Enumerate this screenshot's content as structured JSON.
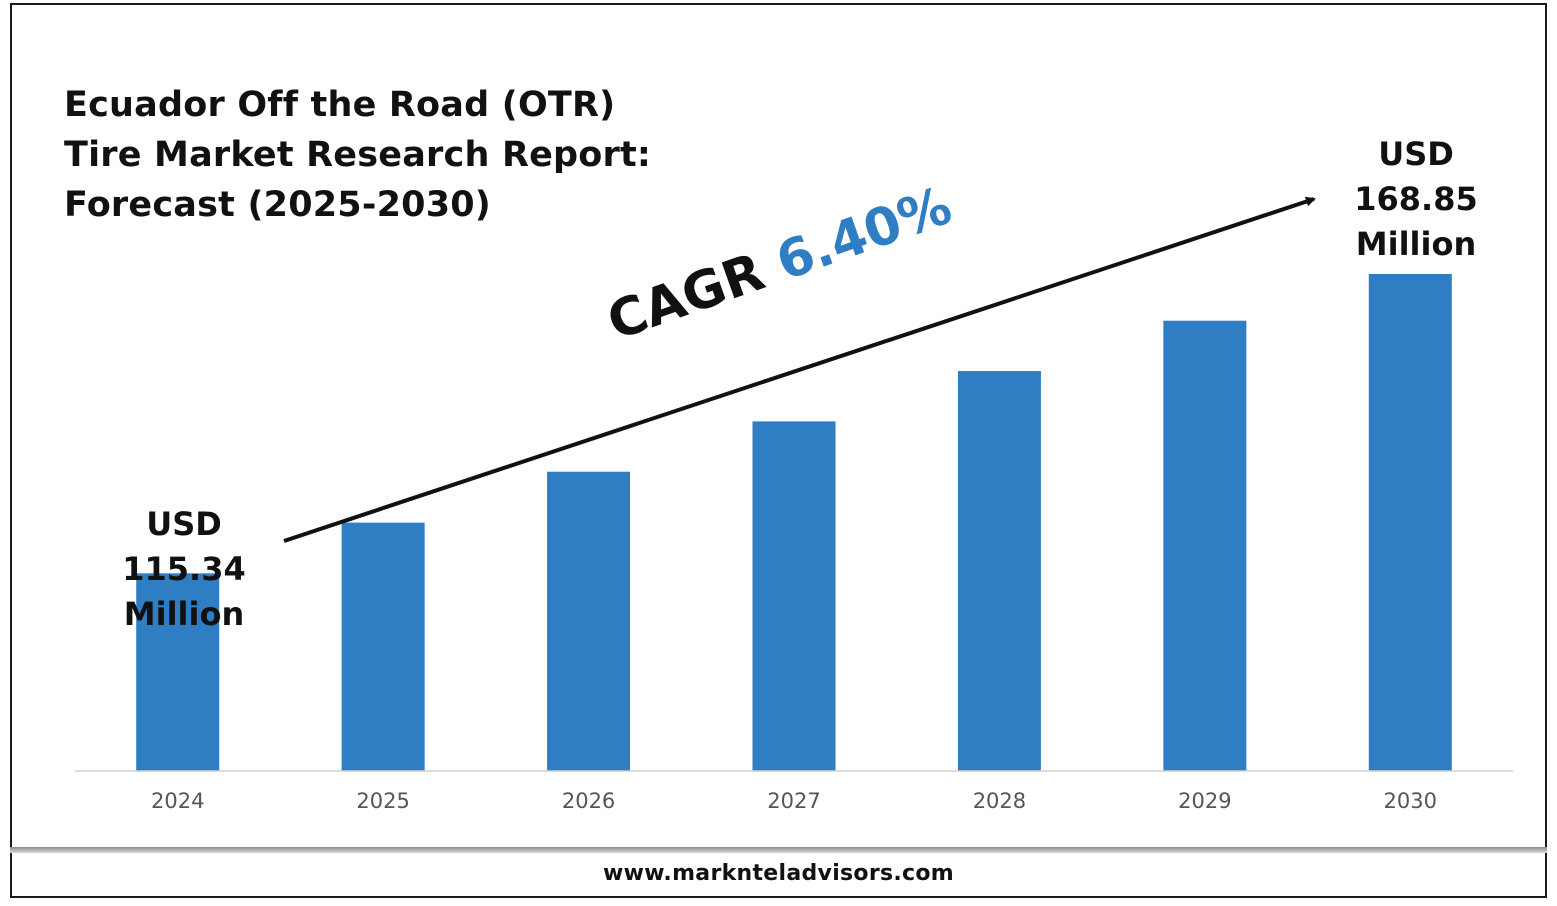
{
  "chart_data": {
    "type": "bar",
    "title": "Ecuador Off the Road (OTR)\nTire Market Research Report:\nForecast (2025-2030)",
    "categories": [
      "2024",
      "2025",
      "2026",
      "2027",
      "2028",
      "2029",
      "2030"
    ],
    "values": [
      115.34,
      124.4,
      133.5,
      142.5,
      151.5,
      160.5,
      168.85
    ],
    "unit": "USD Million",
    "bar_color": "#2f7dc2",
    "ylim": [
      80,
      175
    ],
    "grid": false,
    "legend": "none",
    "annotations": {
      "start": {
        "line1": "USD",
        "line2": "115.34",
        "line3": "Million"
      },
      "end": {
        "line1": "USD",
        "line2": "168.85",
        "line3": "Million"
      },
      "cagr_text": "CAGR",
      "cagr_value": "6.40%",
      "cagr_color": "#2f7dc2"
    }
  },
  "footer": {
    "url": "www.marknteladvisors.com"
  }
}
